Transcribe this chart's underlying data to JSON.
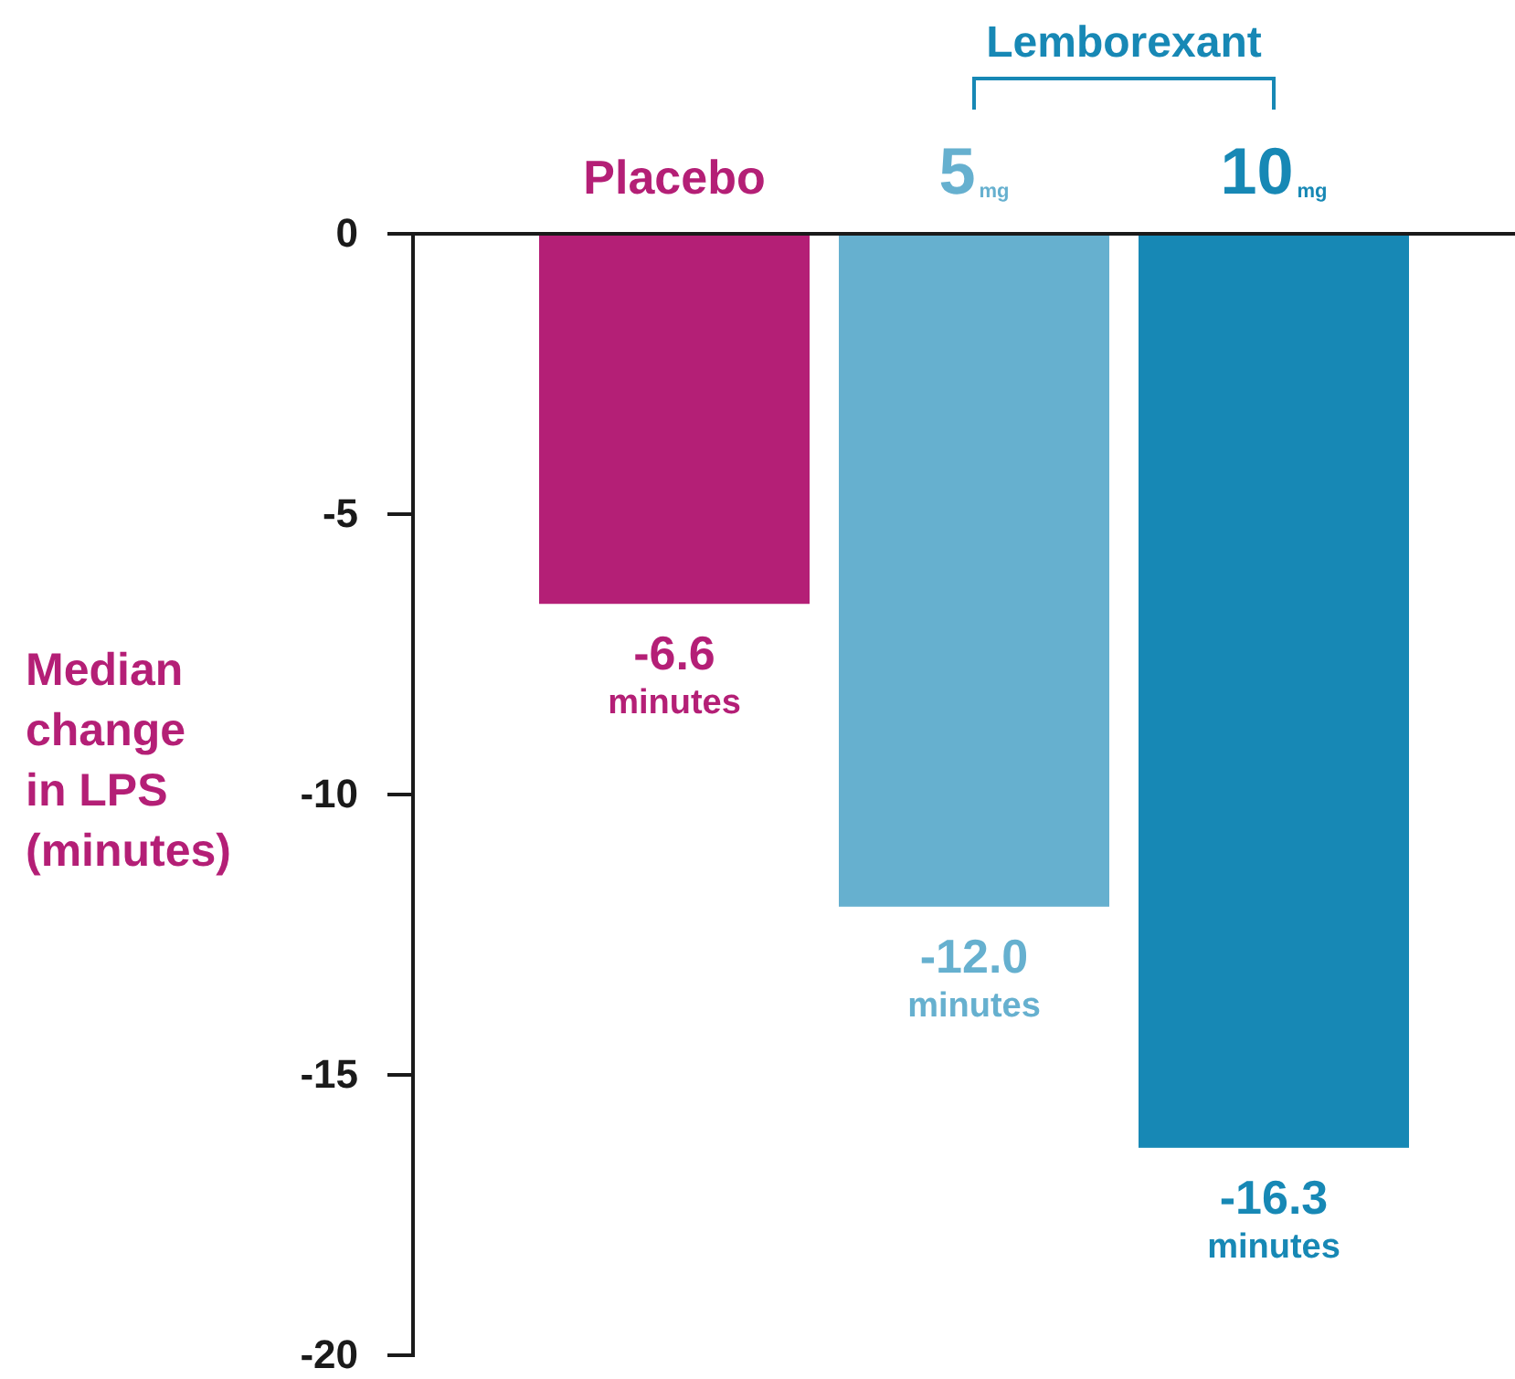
{
  "chart_data": {
    "type": "bar",
    "ylabel": "Median change in LPS (minutes)",
    "categories": [
      "Placebo",
      "5$_{mg}$",
      "10$_{mg}$"
    ],
    "values": [
      -6.6,
      -12.0,
      -16.3
    ],
    "colors": [
      "#b41f76",
      "#66b0cf",
      "#1788b5"
    ],
    "value_labels": [
      "-6.6 minutes",
      "-12.0 minutes",
      "-16.3 minutes"
    ],
    "annotations": [
      "Lemborexant"
    ],
    "ylim": [
      -20,
      0
    ],
    "yticks": [
      0,
      -5,
      -10,
      -15,
      -20
    ]
  }
}
